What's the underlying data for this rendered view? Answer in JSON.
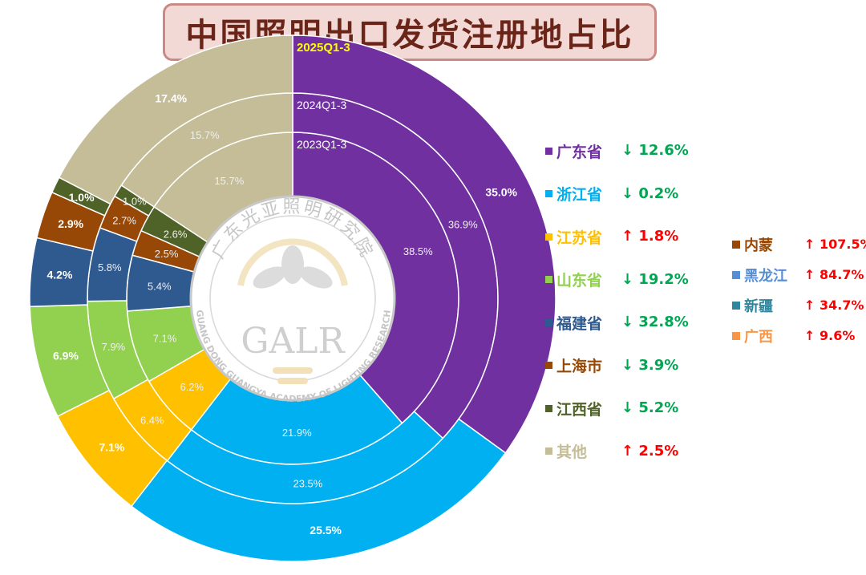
{
  "title": "中国照明出口发货注册地占比",
  "chart_data": {
    "type": "pie",
    "rings": [
      "2023Q1-3",
      "2024Q1-3",
      "2025Q1-3"
    ],
    "series": [
      {
        "name": "广东省",
        "color": "#7030a0",
        "values": [
          38.5,
          36.9,
          35.0
        ]
      },
      {
        "name": "浙江省",
        "color": "#00b0f0",
        "values": [
          21.9,
          23.5,
          25.5
        ]
      },
      {
        "name": "江苏省",
        "color": "#ffc000",
        "values": [
          6.2,
          6.4,
          7.1
        ]
      },
      {
        "name": "山东省",
        "color": "#92d050",
        "values": [
          7.1,
          7.9,
          6.9
        ]
      },
      {
        "name": "福建省",
        "color": "#2f5a8f",
        "values": [
          5.4,
          5.8,
          4.2
        ]
      },
      {
        "name": "上海市",
        "color": "#974806",
        "values": [
          2.5,
          2.7,
          2.9
        ]
      },
      {
        "name": "江西省",
        "color": "#4f6228",
        "values": [
          2.6,
          1.0,
          1.0
        ]
      },
      {
        "name": "其他",
        "color": "#c4bd97",
        "values": [
          15.7,
          15.7,
          17.4
        ]
      }
    ],
    "value_labels": [
      [
        "38.5%",
        "36.9%",
        "35.0%"
      ],
      [
        "21.9%",
        "23.5%",
        "25.5%"
      ],
      [
        "6.2%",
        "6.4%",
        "7.1%"
      ],
      [
        "7.1%",
        "7.9%",
        "6.9%"
      ],
      [
        "5.4%",
        "5.8%",
        "4.2%"
      ],
      [
        "2.5%",
        "2.7%",
        "2.9%"
      ],
      [
        "2.6%",
        "1.0%",
        "1.0%"
      ],
      [
        "15.7%",
        "15.7%",
        "17.4%"
      ]
    ]
  },
  "legend_main": [
    {
      "name": "广东省",
      "color": "#7030a0",
      "change": "↓ 12.6%",
      "dir": "down"
    },
    {
      "name": "浙江省",
      "color": "#00b0f0",
      "change": "↓ 0.2%",
      "dir": "down"
    },
    {
      "name": "江苏省",
      "color": "#ffc000",
      "change": "↑ 1.8%",
      "dir": "up"
    },
    {
      "name": "山东省",
      "color": "#92d050",
      "change": "↓ 19.2%",
      "dir": "down"
    },
    {
      "name": "福建省",
      "color": "#2f5a8f",
      "change": "↓ 32.8%",
      "dir": "down"
    },
    {
      "name": "上海市",
      "color": "#974806",
      "change": "↓ 3.9%",
      "dir": "down"
    },
    {
      "name": "江西省",
      "color": "#4f6228",
      "change": "↓ 5.2%",
      "dir": "down"
    },
    {
      "name": "其他",
      "color": "#c4bd97",
      "change": "↑ 2.5%",
      "dir": "up"
    }
  ],
  "legend_extra": [
    {
      "name": "内蒙",
      "color": "#974806",
      "change": "↑ 107.5%"
    },
    {
      "name": "黑龙江",
      "color": "#558ed5",
      "change": "↑ 84.7%"
    },
    {
      "name": "新疆",
      "color": "#31859c",
      "change": "↑ 34.7%"
    },
    {
      "name": "广西",
      "color": "#f79646",
      "change": "↑ 9.6%"
    }
  ],
  "colors": {
    "up": "#ff0000",
    "down": "#00a651",
    "year_label": "#ffff00",
    "inner_label": "#ffffff"
  },
  "watermark": {
    "logo": "GALR",
    "ring_top": "广东光亚照明研究院",
    "ring_bottom": "GUANG DONG GUANGYA ACADEMY OF LIGHTING RESEARCH"
  }
}
